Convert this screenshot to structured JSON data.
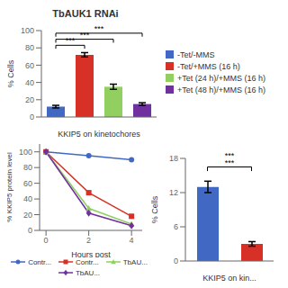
{
  "chart_data": [
    {
      "type": "bar",
      "title": "TbAUK1 RNAi",
      "categories": [
        "-Tet/-MMS",
        "-Tet/+MMS (16 h)",
        "+Tet (24 h)/+MMS (16 h)",
        "+Tet (48 h)/+MMS (16 h)"
      ],
      "values": [
        12,
        72,
        35,
        15
      ],
      "errors": [
        1.5,
        2.5,
        3.0,
        1.5
      ],
      "colors": [
        "#4169c4",
        "#d73027",
        "#91cf60",
        "#7030a0"
      ],
      "ylabel": "% Cells",
      "xlabel": "KKIP5 on kinetochores",
      "ylim": [
        0,
        100
      ],
      "yticks": [
        0,
        20,
        40,
        60,
        80,
        100
      ],
      "tick_labels": "y",
      "legend": "right",
      "annotations": [
        {
          "text": "***",
          "between": [
            "-Tet/-MMS",
            "-Tet/+MMS (16 h)"
          ],
          "y": 83
        },
        {
          "text": "***",
          "between": [
            "-Tet/-MMS",
            "+Tet (24 h)/+MMS (16 h)"
          ],
          "y": 90
        },
        {
          "text": "***",
          "between": [
            "-Tet/-MMS",
            "+Tet (48 h)/+MMS (16 h)"
          ],
          "y": 97
        }
      ]
    },
    {
      "type": "line",
      "x": [
        0,
        2,
        4
      ],
      "series": [
        {
          "name": "Contr...",
          "color": "#4169c4",
          "marker": "circle",
          "values": [
            100,
            95,
            90
          ]
        },
        {
          "name": "Contr...",
          "color": "#d73027",
          "marker": "square",
          "values": [
            100,
            48,
            18
          ]
        },
        {
          "name": "TbAU...",
          "color": "#91cf60",
          "marker": "triangle",
          "values": [
            100,
            28,
            8
          ]
        },
        {
          "name": "TbAU...",
          "color": "#7030a0",
          "marker": "diamond",
          "values": [
            100,
            22,
            6
          ]
        }
      ],
      "ylabel": "% KKIP5 protein level",
      "xlabel": "Hours post",
      "xlim": [
        -0.3,
        4.5
      ],
      "xticks": [
        0,
        2,
        4
      ],
      "ylim": [
        0,
        110
      ],
      "yticks": [
        0,
        20,
        40,
        60,
        80,
        100
      ],
      "legend": "bottom"
    },
    {
      "type": "bar",
      "categories": [
        null,
        null
      ],
      "values": [
        13,
        3
      ],
      "errors": [
        1.0,
        0.4
      ],
      "colors": [
        "#4169c4",
        "#d73027"
      ],
      "ylabel": "% Cells",
      "xlabel": "KKIP5 on kin...",
      "ylim": [
        0,
        18
      ],
      "yticks": [
        0,
        6,
        12,
        18
      ],
      "tick_labels": "y",
      "annotations": [
        {
          "text": "***",
          "between": [
            0,
            1
          ],
          "y": 16.5
        },
        {
          "text": "***",
          "between": [
            0,
            1
          ],
          "y": 17.7,
          "bracket": false
        }
      ]
    }
  ]
}
